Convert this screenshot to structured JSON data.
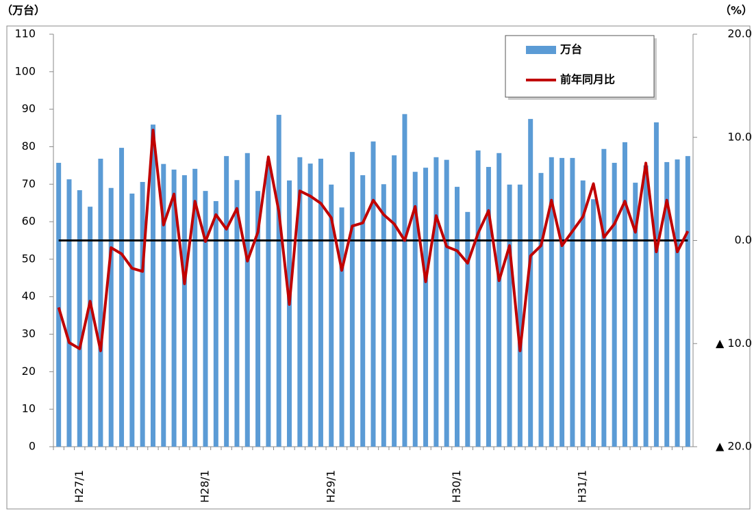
{
  "chart_data": {
    "type": "bar_line",
    "y_label": "（万台）",
    "y2_label": "（%）",
    "categories": [
      null,
      null,
      "H27/1",
      null,
      null,
      null,
      null,
      null,
      null,
      null,
      null,
      null,
      null,
      null,
      "H28/1",
      null,
      null,
      null,
      null,
      null,
      null,
      null,
      null,
      null,
      null,
      null,
      "H29/1",
      null,
      null,
      null,
      null,
      null,
      null,
      null,
      null,
      null,
      null,
      null,
      "H30/1",
      null,
      null,
      null,
      null,
      null,
      null,
      null,
      null,
      null,
      null,
      null,
      "H31/1",
      null,
      null,
      null,
      null,
      null,
      null,
      null,
      null,
      null,
      null
    ],
    "series": [
      {
        "name": "万台",
        "type": "bar",
        "color": "#5b9bd5",
        "values": [
          75.7,
          71.3,
          68.4,
          64,
          76.8,
          69,
          79.7,
          67.5,
          70.6,
          85.9,
          75.4,
          73.9,
          72.4,
          74.1,
          68.2,
          65.5,
          77.5,
          71.1,
          78.3,
          68.2,
          76.1,
          88.5,
          71,
          77.2,
          75.5,
          76.8,
          69.9,
          63.8,
          78.6,
          72.4,
          81.4,
          70,
          77.7,
          88.7,
          73.3,
          74.4,
          77.2,
          76.5,
          69.3,
          62.6,
          79,
          74.6,
          78.3,
          69.9,
          69.9,
          87.4,
          73,
          77.2,
          77,
          77,
          71,
          66,
          79.4,
          75.7,
          81.2,
          70.4,
          75,
          86.5,
          75.9,
          76.6,
          77.5
        ]
      },
      {
        "name": "前年同月比",
        "type": "line",
        "axis": "y2",
        "color": "#c00000",
        "values": [
          -6.5,
          -9.9,
          -10.5,
          -5.9,
          -10.7,
          -0.7,
          -1.3,
          -2.7,
          -3,
          10.7,
          1.5,
          4.5,
          -4.2,
          3.8,
          -0.1,
          2.5,
          1.1,
          3.1,
          -2,
          0.8,
          8.1,
          2.8,
          -6.2,
          4.8,
          4.3,
          3.6,
          2.2,
          -2.9,
          1.4,
          1.7,
          3.9,
          2.5,
          1.6,
          0,
          3.3,
          -4,
          2.4,
          -0.6,
          -1,
          -2.2,
          0.7,
          2.9,
          -3.9,
          -0.5,
          -10.7,
          -1.5,
          -0.5,
          3.9,
          -0.5,
          0.9,
          2.3,
          5.5,
          0.3,
          1.6,
          3.8,
          0.8,
          7.5,
          -1.1,
          3.9,
          -1.1,
          0.9
        ]
      }
    ],
    "ylim": [
      0,
      110
    ],
    "yticks": [
      0,
      10,
      20,
      30,
      40,
      50,
      60,
      70,
      80,
      90,
      100,
      110
    ],
    "y2lim": [
      -20,
      20
    ],
    "y2ticks": [
      {
        "value": -20,
        "label": "▲ 20.0"
      },
      {
        "value": -10,
        "label": "▲ 10.0"
      },
      {
        "value": 0,
        "label": "0.0"
      },
      {
        "value": 10,
        "label": "10.0"
      },
      {
        "value": 20,
        "label": "20.0"
      }
    ],
    "y2_reference_line": 0,
    "reference_color": "#000000",
    "legend": "top-right"
  }
}
